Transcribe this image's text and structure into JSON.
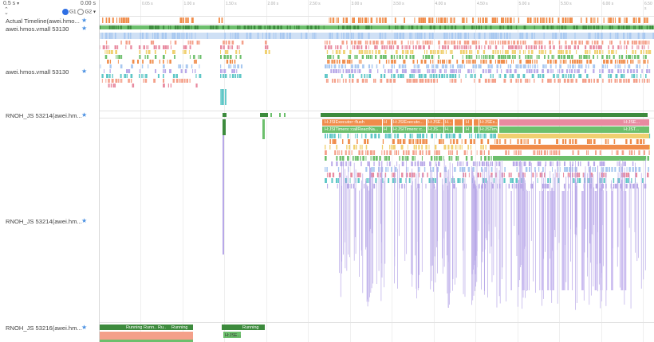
{
  "toolbar": {
    "zoom": "0.5 s",
    "time_origin": "0.00 s",
    "radio_g1": "G1",
    "radio_g2": "G2",
    "collapse_glyph": "⌃",
    "expand_glyph": "⌄"
  },
  "ruler": {
    "ticks": [
      "0.05 s",
      "1.00 s",
      "1.50 s",
      "2.00 s",
      "2.50 s",
      "3.00 s",
      "3.50 s",
      "4.00 s",
      "4.50 s",
      "5.00 s",
      "5.50 s",
      "6.00 s",
      "6.50 s"
    ]
  },
  "tracks": [
    {
      "label": "Actual Timeline(awei.hmo..."
    },
    {
      "label": "awei.hmos.vmall 53130"
    },
    {
      "label": "awei.hmos.vmall 53130"
    },
    {
      "label": "RNOH_JS 53214(awei.hm..."
    },
    {
      "label": "RNOH_JS 53214(awei.hm..."
    },
    {
      "label": "RNOH_JS 53216(awei.hm..."
    }
  ],
  "slice_labels": {
    "row1": [
      "H:JSIExecutor::flush",
      "H",
      "H:JSIExecuto...",
      "H:JSE...",
      "H...",
      "H",
      "H:JSEx..",
      "H:JSE..."
    ],
    "row2": [
      "H:JSITimers::callReactNa...",
      "H",
      "H:JSITimers::c...",
      "H:JS...",
      "H...",
      "H",
      "H:JSTim...",
      "H:JST..."
    ],
    "bottom_row": [
      "Running",
      "Runn...",
      "Ru...",
      "Running",
      "Running"
    ],
    "bottom_stack": "H:JSE..."
  },
  "colors": {
    "orange": "#f08c4a",
    "green_dark": "#3d8b3d",
    "green": "#6cbf6c",
    "purple": "#b8a8e8",
    "blue_light": "#a8c8f0",
    "teal": "#5fc7c7",
    "pink": "#e88aa0",
    "salmon": "#f4a08a",
    "yellow": "#f0d070",
    "star": "#4a90e2"
  }
}
